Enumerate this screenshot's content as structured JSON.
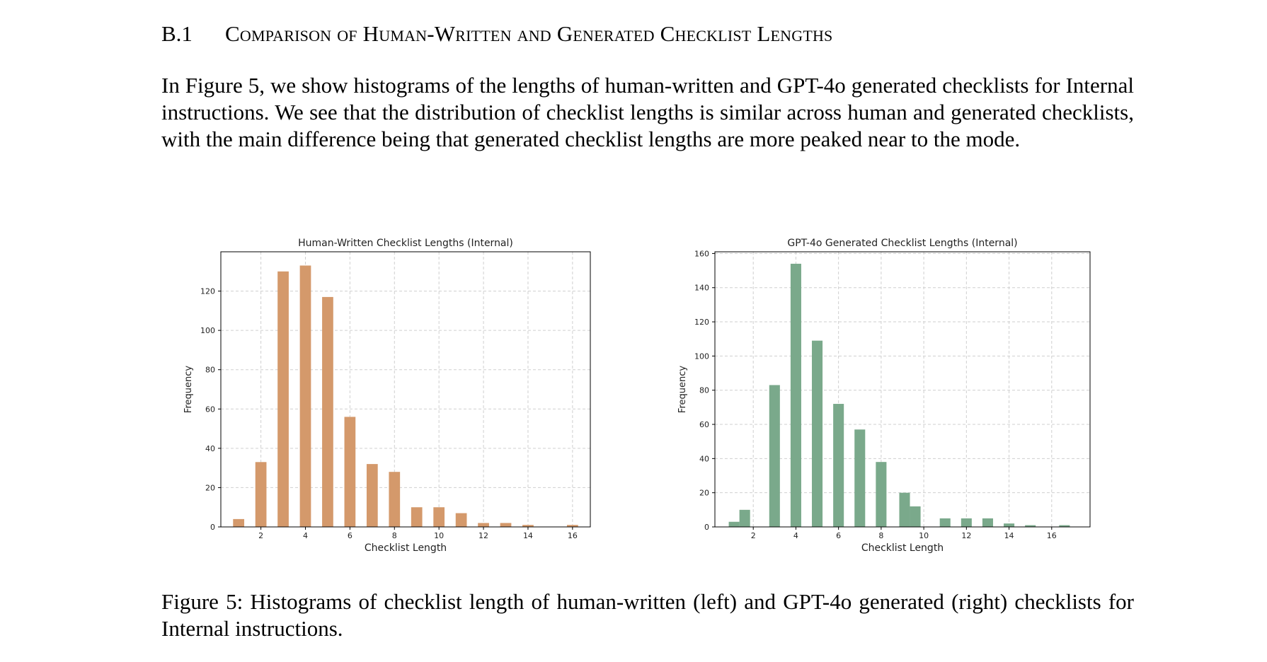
{
  "section": {
    "number": "B.1",
    "title": "Comparison of Human-Written and Generated Checklist Lengths"
  },
  "paragraph": "In Figure 5, we show histograms of the lengths of human-written and GPT-4o generated checklists for Internal instructions. We see that the distribution of checklist lengths is similar across human and generated checklists, with the main difference being that generated checklist lengths are more peaked near to the mode.",
  "caption": "Figure 5: Histograms of checklist length of human-written (left) and GPT-4o generated (right) checklists for Internal instructions.",
  "colors": {
    "human_bars": "#d4996b",
    "generated_bars": "#7aa98b"
  },
  "chart_data": [
    {
      "type": "bar",
      "title": "Human-Written Checklist Lengths (Internal)",
      "xlabel": "Checklist Length",
      "ylabel": "Frequency",
      "xlim": [
        0.2,
        16.8
      ],
      "ylim": [
        0,
        140
      ],
      "xticks": [
        2,
        4,
        6,
        8,
        10,
        12,
        14,
        16
      ],
      "yticks": [
        0,
        20,
        40,
        60,
        80,
        100,
        120
      ],
      "grid": true,
      "x": [
        1,
        2,
        3,
        4,
        5,
        6,
        7,
        8,
        9,
        10,
        11,
        12,
        13,
        14,
        16
      ],
      "values": [
        4,
        33,
        130,
        133,
        117,
        56,
        32,
        28,
        10,
        10,
        7,
        2,
        2,
        1,
        1
      ]
    },
    {
      "type": "bar",
      "title": "GPT-4o Generated Checklist Lengths (Internal)",
      "xlabel": "Checklist Length",
      "ylabel": "Frequency",
      "xlim": [
        0.2,
        17.8
      ],
      "ylim": [
        0,
        161
      ],
      "xticks": [
        2,
        4,
        6,
        8,
        10,
        12,
        14,
        16
      ],
      "yticks": [
        0,
        20,
        40,
        60,
        80,
        100,
        120,
        140,
        160
      ],
      "grid": true,
      "x": [
        1.1,
        1.6,
        3,
        4,
        5,
        6,
        7,
        8,
        9.1,
        9.6,
        11,
        12,
        13,
        14,
        15,
        16.6
      ],
      "values": [
        3,
        10,
        83,
        154,
        109,
        72,
        57,
        38,
        20,
        12,
        5,
        5,
        5,
        2,
        1,
        1
      ]
    }
  ]
}
